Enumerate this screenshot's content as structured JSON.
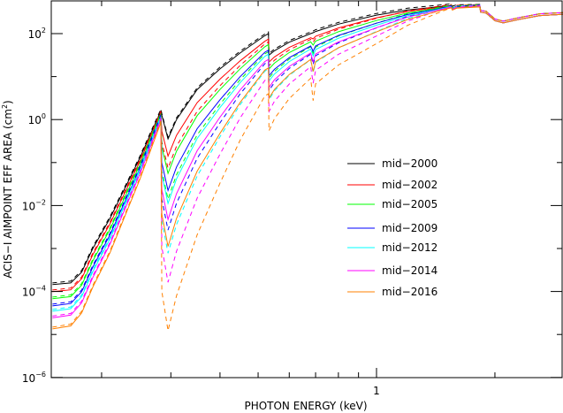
{
  "chart_data": {
    "type": "line",
    "xlabel": "PHOTON ENERGY (keV)",
    "ylabel": "ACIS−I AIMPOINT EFF AREA (cm",
    "ylabel_sup": "2",
    "ylabel_close": ")",
    "x_scale": "log",
    "y_scale": "log",
    "xlim": [
      0.15,
      3.0
    ],
    "ylim": [
      1e-06,
      575
    ],
    "x_tick_labels": [
      {
        "value": 1,
        "label": "1"
      }
    ],
    "x_minor_ticks": [
      0.2,
      0.3,
      0.4,
      0.5,
      0.6,
      0.7,
      0.8,
      0.9,
      2
    ],
    "y_tick_labels": [
      {
        "exp": 2,
        "base": "10",
        "sup": "2"
      },
      {
        "exp": 0,
        "base": "10",
        "sup": "0"
      },
      {
        "exp": -2,
        "base": "10",
        "sup": "−2"
      },
      {
        "exp": -4,
        "base": "10",
        "sup": "−4"
      },
      {
        "exp": -6,
        "base": "10",
        "sup": "−6"
      }
    ],
    "energy_keV": [
      0.15,
      0.167,
      0.178,
      0.19,
      0.21,
      0.25,
      0.283,
      0.2845,
      0.295,
      0.31,
      0.35,
      0.4,
      0.45,
      0.52,
      0.531,
      0.533,
      0.55,
      0.6,
      0.68,
      0.69,
      0.7,
      0.8,
      1.0,
      1.2,
      1.5,
      1.55,
      1.56,
      1.6,
      1.83,
      1.84,
      1.9,
      2.0,
      2.1,
      2.3,
      2.6,
      3.0
    ],
    "mid2000_log10_area_cm2": [
      -3.84,
      -3.8,
      -3.55,
      -3.0,
      -2.3,
      -0.9,
      0.2,
      0.1,
      -0.45,
      0.0,
      0.7,
      1.18,
      1.55,
      1.95,
      2.0,
      1.5,
      1.6,
      1.8,
      2.0,
      2.02,
      2.05,
      2.22,
      2.43,
      2.55,
      2.64,
      2.65,
      2.6,
      2.63,
      2.64,
      2.5,
      2.48,
      2.3,
      2.25,
      2.33,
      2.42,
      2.45
    ],
    "mid2016_contamination_log10_loss": [
      1.03,
      1.0,
      0.95,
      0.9,
      0.8,
      0.5,
      0.27,
      2.3,
      2.5,
      2.3,
      1.9,
      1.5,
      1.15,
      0.8,
      0.8,
      1.0,
      0.9,
      0.75,
      0.6,
      0.9,
      0.7,
      0.55,
      0.39,
      0.22,
      0.07,
      0.05,
      0.05,
      0.04,
      0.02,
      0,
      0,
      0,
      0,
      0,
      0,
      0
    ],
    "dashed_extra_loss_factor_above_C_edge": 1.8,
    "series": [
      {
        "name": "mid−2000",
        "color": "#000000",
        "contamination_scale": 0.0
      },
      {
        "name": "mid−2002",
        "color": "#ff0000",
        "contamination_scale": 0.16
      },
      {
        "name": "mid−2005",
        "color": "#00ff00",
        "contamination_scale": 0.32
      },
      {
        "name": "mid−2009",
        "color": "#0000ff",
        "contamination_scale": 0.48
      },
      {
        "name": "mid−2012",
        "color": "#00ffff",
        "contamination_scale": 0.6
      },
      {
        "name": "mid−2014",
        "color": "#ff00ff",
        "contamination_scale": 0.75
      },
      {
        "name": "mid−2016",
        "color": "#ff8000",
        "contamination_scale": 1.0
      }
    ],
    "legend_placement": "center-right",
    "grid": false
  }
}
